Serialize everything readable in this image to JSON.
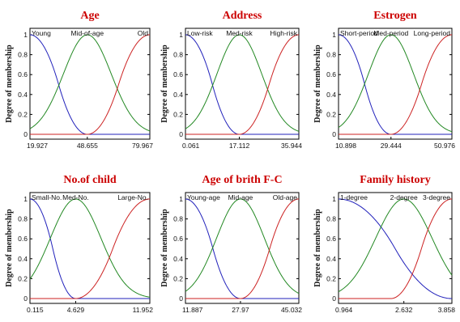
{
  "chart_data": [
    {
      "type": "line",
      "title": "Age",
      "ylabel": "Degree of membership",
      "ylim": [
        0,
        1
      ],
      "y_ticks": [
        "0",
        "0.2",
        "0.4",
        "0.6",
        "0.8",
        "1"
      ],
      "x_ticks": [
        19.927,
        48.655,
        79.967
      ],
      "x_tick_labels": [
        "19.927",
        "48.655",
        "79.967"
      ],
      "series": [
        {
          "name": "Young",
          "shape": "z",
          "a": 19.927,
          "b": 48.655,
          "color": "#2222bb"
        },
        {
          "name": "Mid-of-age",
          "shape": "gauss",
          "mean": 48.655,
          "sigma": 12.0,
          "color": "#228822"
        },
        {
          "name": "Old",
          "shape": "s",
          "a": 48.655,
          "b": 79.967,
          "color": "#cc2222"
        }
      ]
    },
    {
      "type": "line",
      "title": "Address",
      "ylabel": "Degree of membership",
      "ylim": [
        0,
        1
      ],
      "y_ticks": [
        "0",
        "0.2",
        "0.4",
        "0.6",
        "0.8",
        "1"
      ],
      "x_ticks": [
        0.061,
        17.112,
        35.944
      ],
      "x_tick_labels": [
        "0.061",
        "17.112",
        "35.944"
      ],
      "series": [
        {
          "name": "Low-risk",
          "shape": "z",
          "a": 0.061,
          "b": 17.112,
          "color": "#2222bb"
        },
        {
          "name": "Med-risk",
          "shape": "gauss",
          "mean": 17.112,
          "sigma": 7.1,
          "color": "#228822"
        },
        {
          "name": "High-risk",
          "shape": "s",
          "a": 17.112,
          "b": 35.944,
          "color": "#cc2222"
        }
      ]
    },
    {
      "type": "line",
      "title": "Estrogen",
      "ylabel": "Degree of membership",
      "ylim": [
        0,
        1
      ],
      "y_ticks": [
        "0",
        "0.2",
        "0.4",
        "0.6",
        "0.8",
        "1"
      ],
      "x_ticks": [
        10.898,
        29.444,
        50.976
      ],
      "x_tick_labels": [
        "10.898",
        "29.444",
        "50.976"
      ],
      "series": [
        {
          "name": "Short-period",
          "shape": "z",
          "a": 10.898,
          "b": 29.444,
          "color": "#2222bb"
        },
        {
          "name": "Med-period",
          "shape": "gauss",
          "mean": 29.444,
          "sigma": 8.0,
          "color": "#228822"
        },
        {
          "name": "Long-period",
          "shape": "s",
          "a": 29.444,
          "b": 50.976,
          "color": "#cc2222"
        }
      ]
    },
    {
      "type": "line",
      "title": "No.of child",
      "ylabel": "Degree of membership",
      "ylim": [
        0,
        1
      ],
      "y_ticks": [
        "0",
        "0.2",
        "0.4",
        "0.6",
        "0.8",
        "1"
      ],
      "x_ticks": [
        0.115,
        4.629,
        11.952
      ],
      "x_tick_labels": [
        "0.115",
        "4.629",
        "11.952"
      ],
      "series": [
        {
          "name": "Small-No.",
          "shape": "z",
          "a": 0.115,
          "b": 4.629,
          "color": "#2222bb"
        },
        {
          "name": "Med-No.",
          "shape": "gauss",
          "mean": 4.629,
          "sigma": 2.5,
          "color": "#228822"
        },
        {
          "name": "Large-No.",
          "shape": "s",
          "a": 4.629,
          "b": 11.952,
          "color": "#cc2222"
        }
      ]
    },
    {
      "type": "line",
      "title": "Age of brith F-C",
      "ylabel": "Degree of membership",
      "ylim": [
        0,
        1
      ],
      "y_ticks": [
        "0",
        "0.2",
        "0.4",
        "0.6",
        "0.8",
        "1"
      ],
      "x_ticks": [
        11.887,
        27.97,
        45.032
      ],
      "x_tick_labels": [
        "11.887",
        "27.97",
        "45.032"
      ],
      "series": [
        {
          "name": "Young-age",
          "shape": "z",
          "a": 11.887,
          "b": 27.97,
          "color": "#2222bb"
        },
        {
          "name": "Mid-age",
          "shape": "gauss",
          "mean": 27.97,
          "sigma": 7.0,
          "color": "#228822"
        },
        {
          "name": "Old-age",
          "shape": "s",
          "a": 27.97,
          "b": 45.032,
          "color": "#cc2222"
        }
      ]
    },
    {
      "type": "line",
      "title": "Family history",
      "ylabel": "Degree of membership",
      "ylim": [
        0,
        1
      ],
      "y_ticks": [
        "0",
        "0.2",
        "0.4",
        "0.6",
        "0.8",
        "1"
      ],
      "x_ticks": [
        0.964,
        2.632,
        3.858
      ],
      "x_tick_labels": [
        "0.964",
        "2.632",
        "3.858"
      ],
      "series": [
        {
          "name": "1-degree",
          "shape": "z",
          "a": 0.964,
          "b": 3.858,
          "color": "#2222bb"
        },
        {
          "name": "2-degree",
          "shape": "gauss",
          "mean": 2.632,
          "sigma": 0.72,
          "color": "#228822"
        },
        {
          "name": "3-degree",
          "shape": "s",
          "a": 2.3,
          "b": 3.858,
          "color": "#cc2222"
        }
      ]
    }
  ]
}
